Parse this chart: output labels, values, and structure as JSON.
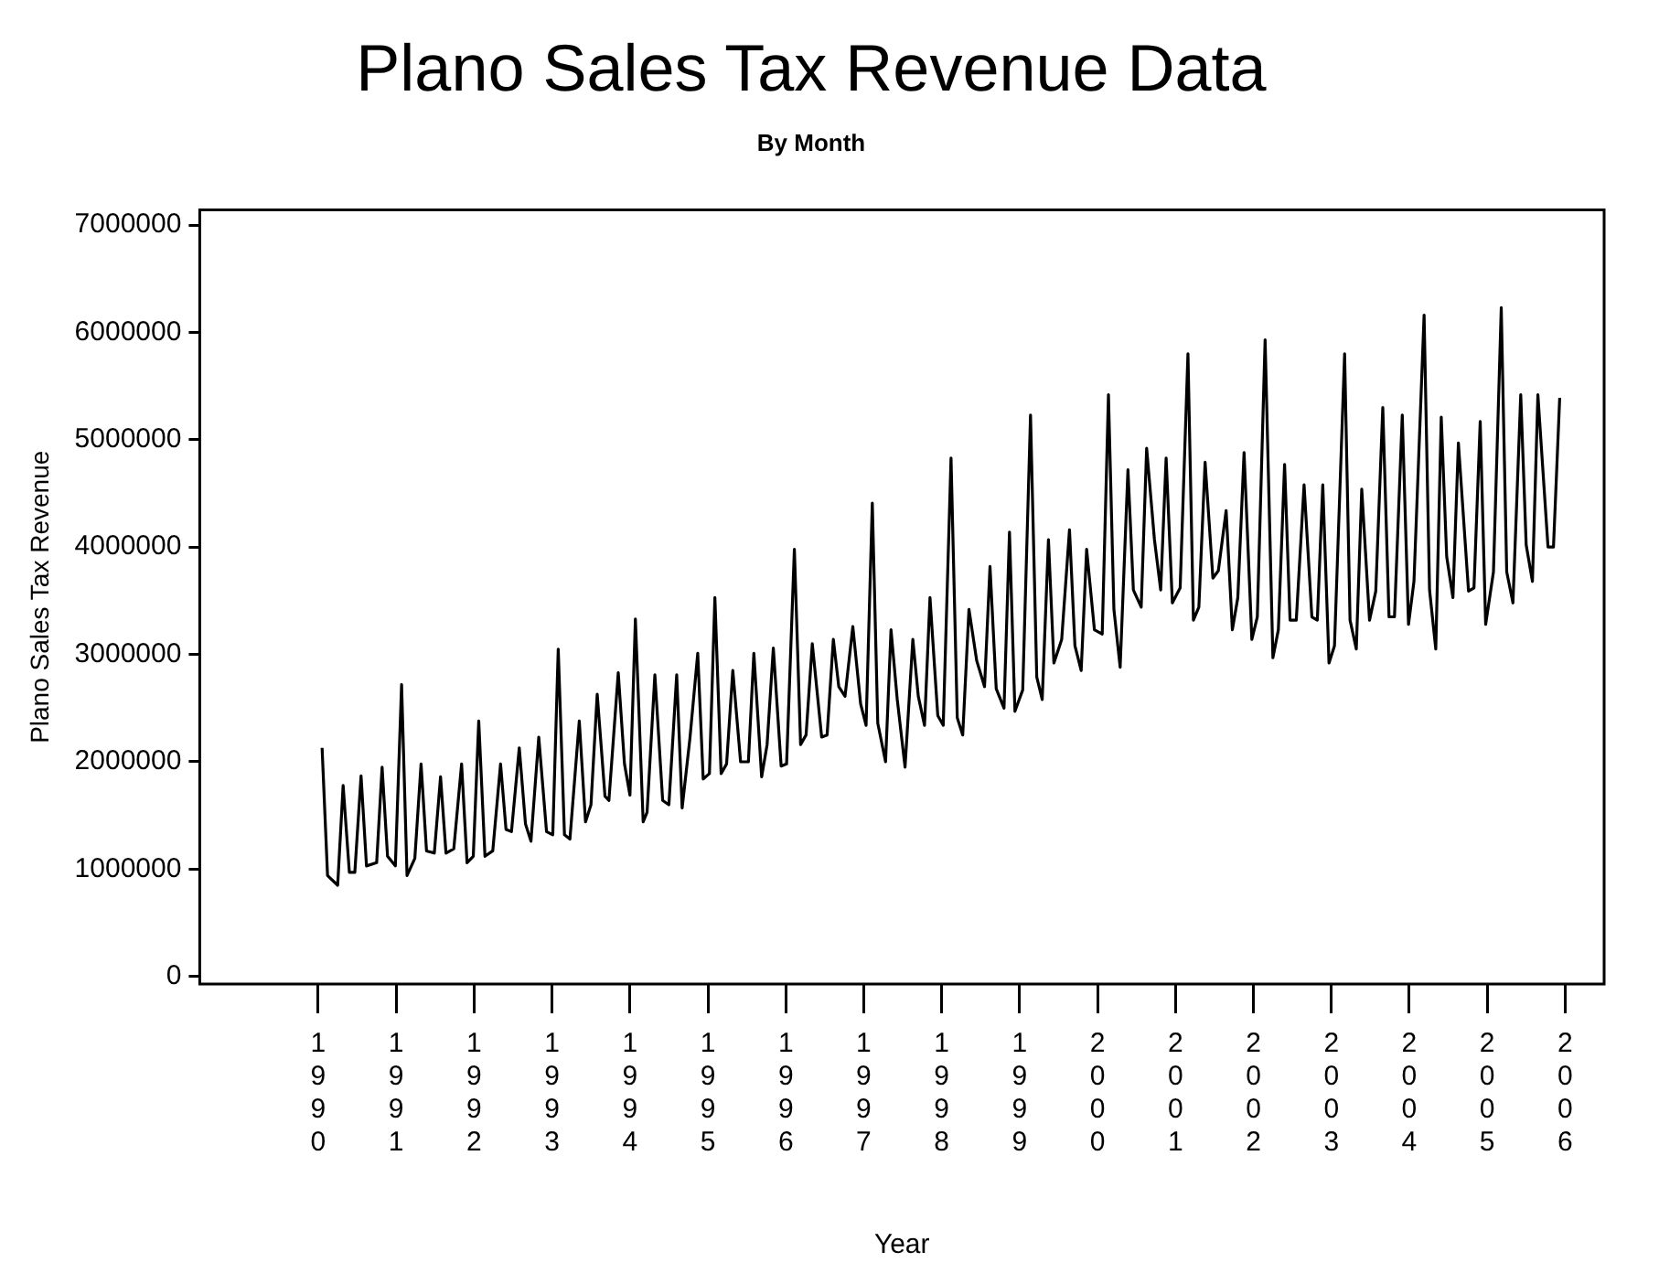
{
  "chart_data": {
    "type": "line",
    "title": "Plano Sales Tax Revenue Data",
    "subtitle": "By Month",
    "xlabel": "Year",
    "ylabel": "Plano Sales Tax Revenue",
    "xlim": [
      1988.48,
      2006.5
    ],
    "xticks": [
      1990,
      1991,
      1992,
      1993,
      1994,
      1995,
      1996,
      1997,
      1998,
      1999,
      2000,
      2001,
      2002,
      2003,
      2004,
      2005,
      2006
    ],
    "ylim": [
      -70000,
      7140000
    ],
    "yticks": [
      0,
      1000000,
      2000000,
      3000000,
      4000000,
      5000000,
      6000000,
      7000000
    ],
    "grid": false,
    "legend": false,
    "marker": "none",
    "line_style": "solid",
    "series": [
      {
        "color": "#000000",
        "x": [
          1990.05,
          1990.12,
          1990.25,
          1990.32,
          1990.4,
          1990.47,
          1990.55,
          1990.62,
          1990.75,
          1990.82,
          1990.89,
          1990.99,
          1991.07,
          1991.14,
          1991.24,
          1991.32,
          1991.39,
          1991.49,
          1991.57,
          1991.64,
          1991.74,
          1991.84,
          1991.91,
          1991.99,
          1992.06,
          1992.14,
          1992.24,
          1992.34,
          1992.41,
          1992.48,
          1992.58,
          1992.66,
          1992.73,
          1992.83,
          1992.93,
          1993.01,
          1993.08,
          1993.16,
          1993.23,
          1993.35,
          1993.43,
          1993.5,
          1993.58,
          1993.68,
          1993.73,
          1993.85,
          1993.93,
          1994.0,
          1994.07,
          1994.17,
          1994.22,
          1994.32,
          1994.42,
          1994.5,
          1994.6,
          1994.67,
          1994.77,
          1994.87,
          1994.94,
          1995.02,
          1995.09,
          1995.17,
          1995.24,
          1995.32,
          1995.42,
          1995.52,
          1995.59,
          1995.69,
          1995.76,
          1995.84,
          1995.94,
          1996.01,
          1996.11,
          1996.19,
          1996.26,
          1996.34,
          1996.46,
          1996.53,
          1996.61,
          1996.68,
          1996.76,
          1996.86,
          1996.96,
          1997.03,
          1997.11,
          1997.18,
          1997.28,
          1997.35,
          1997.43,
          1997.53,
          1997.63,
          1997.7,
          1997.78,
          1997.85,
          1997.95,
          1998.02,
          1998.12,
          1998.2,
          1998.27,
          1998.35,
          1998.45,
          1998.55,
          1998.62,
          1998.7,
          1998.8,
          1998.87,
          1998.94,
          1999.04,
          1999.14,
          1999.22,
          1999.29,
          1999.37,
          1999.44,
          1999.54,
          1999.64,
          1999.71,
          1999.79,
          1999.86,
          1999.96,
          2000.06,
          2000.14,
          2000.21,
          2000.29,
          2000.39,
          2000.46,
          2000.56,
          2000.63,
          2000.73,
          2000.81,
          2000.88,
          2000.96,
          2001.06,
          2001.16,
          2001.23,
          2001.3,
          2001.38,
          2001.48,
          2001.55,
          2001.65,
          2001.73,
          2001.8,
          2001.88,
          2001.98,
          2002.05,
          2002.15,
          2002.25,
          2002.32,
          2002.4,
          2002.47,
          2002.55,
          2002.65,
          2002.75,
          2002.82,
          2002.89,
          2002.97,
          2003.04,
          2003.17,
          2003.24,
          2003.32,
          2003.39,
          2003.49,
          2003.57,
          2003.66,
          2003.74,
          2003.81,
          2003.91,
          2003.99,
          2004.06,
          2004.19,
          2004.26,
          2004.34,
          2004.41,
          2004.48,
          2004.56,
          2004.63,
          2004.76,
          2004.83,
          2004.91,
          2004.98,
          2005.08,
          2005.18,
          2005.25,
          2005.33,
          2005.43,
          2005.5,
          2005.58,
          2005.65,
          2005.78,
          2005.85,
          2005.93
        ],
        "values": [
          2130000,
          940000,
          850000,
          1780000,
          970000,
          970000,
          1870000,
          1030000,
          1060000,
          1950000,
          1120000,
          1030000,
          2720000,
          940000,
          1100000,
          1980000,
          1170000,
          1150000,
          1860000,
          1150000,
          1190000,
          1980000,
          1060000,
          1120000,
          2380000,
          1120000,
          1170000,
          1980000,
          1370000,
          1350000,
          2130000,
          1420000,
          1260000,
          2230000,
          1350000,
          1320000,
          3050000,
          1320000,
          1280000,
          2380000,
          1440000,
          1600000,
          2630000,
          1680000,
          1640000,
          2830000,
          1980000,
          1690000,
          3330000,
          1440000,
          1530000,
          2810000,
          1640000,
          1600000,
          2810000,
          1570000,
          2220000,
          3010000,
          1840000,
          1890000,
          3530000,
          1890000,
          1980000,
          2850000,
          2000000,
          2000000,
          3010000,
          1860000,
          2160000,
          3060000,
          1960000,
          1980000,
          3980000,
          2160000,
          2250000,
          3100000,
          2230000,
          2250000,
          3140000,
          2700000,
          2610000,
          3260000,
          2540000,
          2340000,
          4410000,
          2360000,
          2000000,
          3230000,
          2580000,
          1950000,
          3140000,
          2610000,
          2340000,
          3530000,
          2430000,
          2340000,
          4830000,
          2410000,
          2250000,
          3420000,
          2940000,
          2700000,
          3820000,
          2680000,
          2500000,
          4140000,
          2470000,
          2670000,
          5230000,
          2790000,
          2580000,
          4070000,
          2920000,
          3140000,
          4160000,
          3080000,
          2850000,
          3980000,
          3230000,
          3190000,
          5420000,
          3420000,
          2880000,
          4720000,
          3600000,
          3440000,
          4920000,
          4070000,
          3600000,
          4830000,
          3480000,
          3620000,
          5800000,
          3320000,
          3440000,
          4790000,
          3710000,
          3780000,
          4340000,
          3230000,
          3530000,
          4880000,
          3140000,
          3350000,
          5930000,
          2970000,
          3230000,
          4770000,
          3320000,
          3320000,
          4580000,
          3350000,
          3320000,
          4580000,
          2920000,
          3080000,
          5800000,
          3320000,
          3050000,
          4540000,
          3320000,
          3590000,
          5300000,
          3350000,
          3350000,
          5230000,
          3280000,
          3680000,
          6160000,
          3600000,
          3050000,
          5210000,
          3910000,
          3530000,
          4970000,
          3590000,
          3620000,
          5170000,
          3280000,
          3770000,
          6230000,
          3770000,
          3480000,
          5420000,
          4020000,
          3680000,
          5420000,
          4000000,
          4000000,
          5390000
        ]
      }
    ]
  }
}
